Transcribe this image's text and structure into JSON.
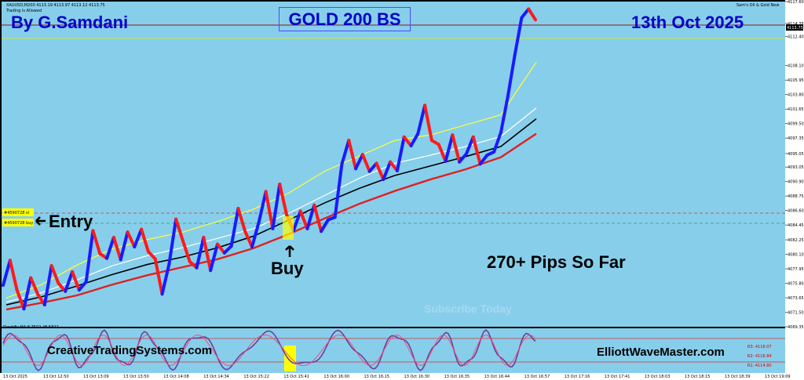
{
  "chart_data": {
    "type": "line",
    "symbol_line": "XAUUSD,M200  4113.19 4113.97 4113.12 4113.75",
    "trading_status": "Trading is Allowed",
    "broker_label": "Sam's Oil & Gold New",
    "author_text": "By G.Samdani",
    "system_name": "GOLD 200 BS",
    "date_text": "13th Oct 2025",
    "entry_label": "Entry",
    "buy_label": "Buy",
    "pips_text": "270+ Pips So Far",
    "subscribe_text": "Subscribe Today",
    "site_left": "CreativeTradingSystems.com",
    "site_right": "ElliottWaveMaster.com",
    "order_labels": [
      "#4590728 sl",
      "#4590728 buy"
    ],
    "current_price": "4113.75",
    "y_ticks": [
      "4117.60",
      "4114.35",
      "4112.40",
      "4108.10",
      "4105.95",
      "4103.80",
      "4101.65",
      "4099.50",
      "4097.35",
      "4095.05",
      "4093.05",
      "4090.90",
      "4088.75",
      "4086.60",
      "4084.45",
      "4082.25",
      "4080.10",
      "4077.95",
      "4075.80",
      "4073.65",
      "4071.50",
      "4069.35"
    ],
    "ylim": [
      4069.35,
      4117.6
    ],
    "x_ticks": [
      "13 Oct 2025",
      "13 Oct 12:50",
      "13 Oct 13:09",
      "13 Oct 13:50",
      "13 Oct 14:08",
      "13 Oct 14:34",
      "13 Oct 15:22",
      "13 Oct 15:41",
      "13 Oct 16:00",
      "13 Oct 16:15",
      "13 Oct 16:30",
      "13 Oct 16:35",
      "13 Oct 16:44",
      "13 Oct 16:57",
      "13 Oct 17:16",
      "13 Oct 17:41",
      "13 Oct 18:03",
      "13 Oct 18:15",
      "13 Oct 18:39",
      "13 Oct 19:09"
    ],
    "price_path": [
      4075.5,
      4079.2,
      4074.8,
      4072.0,
      4076.6,
      4074.2,
      4072.6,
      4078.4,
      4075.8,
      4074.6,
      4077.5,
      4074.8,
      4076.0,
      4083.6,
      4080.2,
      4079.5,
      4082.6,
      4079.3,
      4083.4,
      4081.2,
      4083.8,
      4080.5,
      4079.4,
      4074.2,
      4078.6,
      4085.3,
      4082.1,
      4079.0,
      4078.1,
      4082.6,
      4077.7,
      4081.6,
      4080.3,
      4081.3,
      4086.9,
      4083.5,
      4081.2,
      4084.9,
      4089.4,
      4083.9,
      4090.5,
      4086.0,
      4083.6,
      4086.5,
      4083.9,
      4087.4,
      4083.5,
      4085.2,
      4085.6,
      4093.5,
      4097.0,
      4092.8,
      4094.9,
      4092.4,
      4093.6,
      4091.2,
      4093.8,
      4092.5,
      4097.5,
      4096.2,
      4098.0,
      4102.2,
      4097.0,
      4096.4,
      4093.9,
      4097.8,
      4093.8,
      4095.0,
      4097.5,
      4093.5,
      4094.8,
      4095.3,
      4098.2,
      4103.5,
      4109.6,
      4115.2,
      4116.5,
      4114.9
    ],
    "ma_series": [
      {
        "color": "#ffff33",
        "values": [
          4073.6,
          4075.6,
          4078.5,
          4080.9,
          4082.3,
          4083.4,
          4085.0,
          4086.8,
          4089.2,
          4092.4,
          4094.7,
          4097.0,
          4097.8,
          4099.3,
          4100.8,
          4108.6
        ]
      },
      {
        "color": "#ffffff",
        "values": [
          4073.0,
          4074.4,
          4076.3,
          4078.4,
          4079.9,
          4081.1,
          4082.5,
          4083.9,
          4086.2,
          4088.8,
          4091.4,
          4093.6,
          4094.8,
          4096.1,
          4097.6,
          4101.8
        ]
      },
      {
        "color": "#000000",
        "values": [
          4072.6,
          4073.8,
          4075.4,
          4077.1,
          4078.6,
          4079.7,
          4081.1,
          4082.8,
          4085.2,
          4087.7,
          4089.9,
          4091.8,
          4093.2,
          4094.6,
          4096.1,
          4100.2
        ]
      },
      {
        "color": "#dd2222",
        "values": [
          4071.9,
          4072.9,
          4074.0,
          4075.6,
          4077.0,
          4078.2,
          4079.4,
          4081.0,
          4083.1,
          4085.4,
          4087.6,
          4089.5,
          4091.2,
          4092.7,
          4094.5,
          4098.0
        ]
      }
    ],
    "oscillator_label": "StochFx MA 8.7502 48.5822",
    "oscillator_levels": [
      "R3: 4118.07",
      "R2: 4116.84",
      "R1: 4114.80"
    ],
    "colors": {
      "background": "#87ceeb",
      "up": "#1a1aff",
      "down": "#ff1a1a",
      "title": "#0000cc",
      "oscillator": "#6b3fa0"
    }
  }
}
